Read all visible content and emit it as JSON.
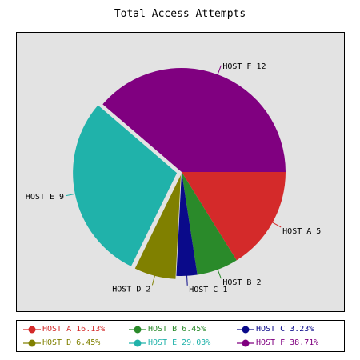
{
  "chart_data": {
    "type": "pie",
    "title": "Total Access Attempts",
    "slices": [
      {
        "name": "HOST A",
        "value": 5,
        "percent": "16.13%",
        "color": "#d42a2a"
      },
      {
        "name": "HOST B",
        "value": 2,
        "percent": "6.45%",
        "color": "#2a8a2a"
      },
      {
        "name": "HOST C",
        "value": 1,
        "percent": "3.23%",
        "color": "#0a0a8a"
      },
      {
        "name": "HOST D",
        "value": 2,
        "percent": "6.45%",
        "color": "#808000"
      },
      {
        "name": "HOST E",
        "value": 9,
        "percent": "29.03%",
        "color": "#20b2aa"
      },
      {
        "name": "HOST F",
        "value": 12,
        "percent": "38.71%",
        "color": "#800080"
      }
    ],
    "slice_labels": [
      "HOST A 5",
      "HOST B 2",
      "HOST C 1",
      "HOST D 2",
      "HOST E 9",
      "HOST F 12"
    ],
    "legend_placement": "bottom",
    "start_angle_deg": 0,
    "direction": "clockwise"
  }
}
